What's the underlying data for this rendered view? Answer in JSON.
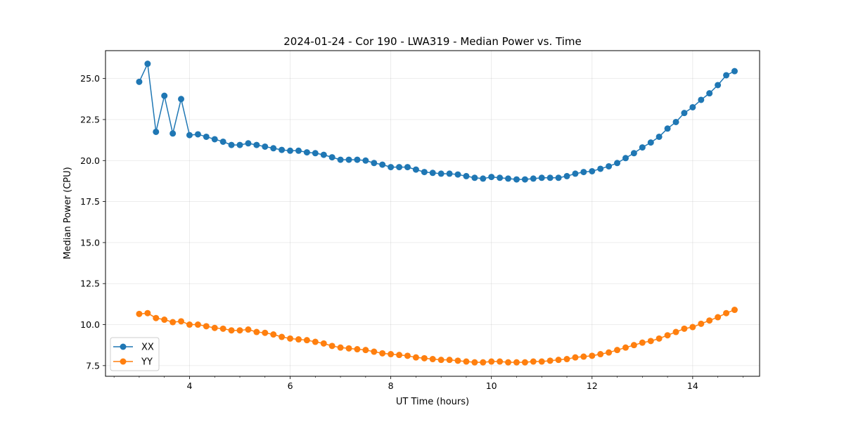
{
  "chart_data": {
    "type": "line",
    "title": "2024-01-24 - Cor 190 - LWA319 - Median Power vs. Time",
    "xlabel": "UT Time (hours)",
    "ylabel": "Median Power (CPU)",
    "xlim": [
      2.33,
      15.33
    ],
    "ylim": [
      6.85,
      26.7
    ],
    "xticks": [
      4,
      6,
      8,
      10,
      12,
      14
    ],
    "xtick_labels": [
      "4",
      "6",
      "8",
      "10",
      "12",
      "14"
    ],
    "xminor_step": 0.5,
    "yticks": [
      7.5,
      10.0,
      12.5,
      15.0,
      17.5,
      20.0,
      22.5,
      25.0
    ],
    "ytick_labels": [
      "7.5",
      "10.0",
      "12.5",
      "15.0",
      "17.5",
      "20.0",
      "22.5",
      "25.0"
    ],
    "grid": true,
    "legend_position": "lower-left",
    "x": [
      3.0,
      3.167,
      3.333,
      3.5,
      3.667,
      3.833,
      4.0,
      4.167,
      4.333,
      4.5,
      4.667,
      4.833,
      5.0,
      5.167,
      5.333,
      5.5,
      5.667,
      5.833,
      6.0,
      6.167,
      6.333,
      6.5,
      6.667,
      6.833,
      7.0,
      7.167,
      7.333,
      7.5,
      7.667,
      7.833,
      8.0,
      8.167,
      8.333,
      8.5,
      8.667,
      8.833,
      9.0,
      9.167,
      9.333,
      9.5,
      9.667,
      9.833,
      10.0,
      10.167,
      10.333,
      10.5,
      10.667,
      10.833,
      11.0,
      11.167,
      11.333,
      11.5,
      11.667,
      11.833,
      12.0,
      12.167,
      12.333,
      12.5,
      12.667,
      12.833,
      13.0,
      13.167,
      13.333,
      13.5,
      13.667,
      13.833,
      14.0,
      14.167,
      14.333,
      14.5,
      14.667,
      14.833
    ],
    "series": [
      {
        "name": "XX",
        "color": "#1f77b4",
        "values": [
          24.8,
          25.9,
          21.75,
          23.95,
          21.65,
          23.75,
          21.55,
          21.6,
          21.45,
          21.3,
          21.15,
          20.95,
          20.95,
          21.05,
          20.95,
          20.85,
          20.75,
          20.65,
          20.6,
          20.6,
          20.5,
          20.45,
          20.35,
          20.2,
          20.05,
          20.05,
          20.05,
          20.0,
          19.85,
          19.75,
          19.6,
          19.6,
          19.6,
          19.45,
          19.3,
          19.25,
          19.2,
          19.2,
          19.15,
          19.05,
          18.95,
          18.9,
          19.0,
          18.95,
          18.9,
          18.85,
          18.85,
          18.9,
          18.95,
          18.95,
          18.95,
          19.05,
          19.2,
          19.3,
          19.35,
          19.5,
          19.65,
          19.85,
          20.15,
          20.45,
          20.8,
          21.1,
          21.45,
          21.95,
          22.35,
          22.9,
          23.25,
          23.7,
          24.1,
          24.6,
          25.2,
          25.45
        ]
      },
      {
        "name": "YY",
        "color": "#ff7f0e",
        "values": [
          10.65,
          10.7,
          10.4,
          10.3,
          10.15,
          10.2,
          10.0,
          10.0,
          9.9,
          9.8,
          9.75,
          9.65,
          9.65,
          9.7,
          9.55,
          9.5,
          9.4,
          9.25,
          9.15,
          9.1,
          9.05,
          8.95,
          8.85,
          8.7,
          8.6,
          8.55,
          8.5,
          8.45,
          8.35,
          8.25,
          8.2,
          8.15,
          8.1,
          8.0,
          7.95,
          7.9,
          7.85,
          7.85,
          7.8,
          7.75,
          7.7,
          7.7,
          7.75,
          7.75,
          7.7,
          7.7,
          7.7,
          7.75,
          7.75,
          7.8,
          7.85,
          7.9,
          8.0,
          8.05,
          8.1,
          8.2,
          8.3,
          8.45,
          8.6,
          8.75,
          8.9,
          9.0,
          9.15,
          9.35,
          9.55,
          9.75,
          9.85,
          10.05,
          10.25,
          10.45,
          10.7,
          10.9
        ]
      }
    ]
  }
}
